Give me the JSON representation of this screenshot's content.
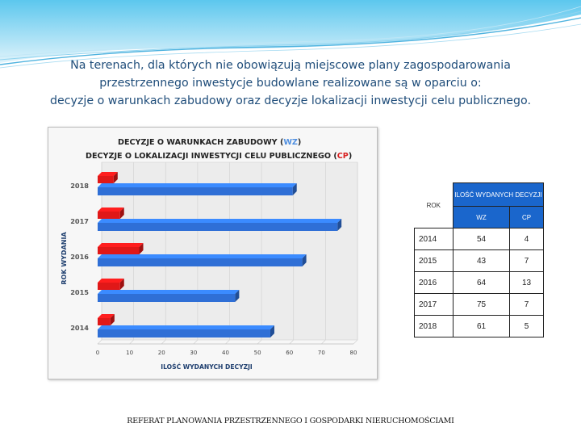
{
  "heading": {
    "line1": "Na terenach, dla których nie obowiązują miejscowe plany zagospodarowania",
    "line2": "przestrzennego inwestycje budowlane  realizowane są w oparciu o:",
    "line3": "decyzje o warunkach zabudowy oraz decyzje lokalizacji inwestycji celu publicznego."
  },
  "chart_data": {
    "type": "bar",
    "orientation": "horizontal",
    "title_line1": "DECYZJE O WARUNKACH ZABUDOWY (",
    "title_line1_code": "WZ",
    "title_line1_end": ")",
    "title_line2": "DECYZJE  O LOKALIZACJI INWESTYCJI CELU PUBLICZNEGO (",
    "title_line2_code": "CP",
    "title_line2_end": ")",
    "xlabel": "ILOŚĆ WYDANYCH DECYZJI",
    "ylabel": "ROK  WYDANIA",
    "xlim": [
      0,
      80
    ],
    "xticks": [
      "0",
      "10",
      "20",
      "30",
      "40",
      "50",
      "60",
      "70",
      "80"
    ],
    "categories": [
      "2018",
      "2017",
      "2016",
      "2015",
      "2014"
    ],
    "series": [
      {
        "key": "WZ",
        "values": [
          61,
          75,
          64,
          43,
          54
        ],
        "color": "#2f6fd6"
      },
      {
        "key": "CP",
        "values": [
          5,
          7,
          13,
          7,
          4
        ],
        "color": "#e01818"
      }
    ],
    "colors": {
      "code_wz": "#4f8fe0",
      "code_cp": "#d81e1e"
    }
  },
  "table": {
    "header_rok": "ROK",
    "header_group": "ILOŚĆ WYDANYCH DECYZJI",
    "header_wz": "WZ",
    "header_cp": "CP",
    "rows": [
      {
        "year": "2014",
        "wz": "54",
        "cp": "4"
      },
      {
        "year": "2015",
        "wz": "43",
        "cp": "7"
      },
      {
        "year": "2016",
        "wz": "64",
        "cp": "13"
      },
      {
        "year": "2017",
        "wz": "75",
        "cp": "7"
      },
      {
        "year": "2018",
        "wz": "61",
        "cp": "5"
      }
    ]
  },
  "footer": "REFERAT PLANOWANIA PRZESTRZENNEGO I GOSPODARKI NIERUCHOMOŚCIAMI"
}
